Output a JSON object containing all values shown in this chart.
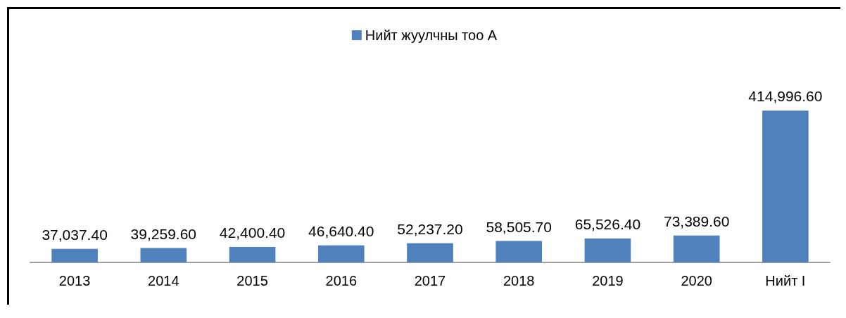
{
  "chart_data": {
    "type": "bar",
    "categories": [
      "2013",
      "2014",
      "2015",
      "2016",
      "2017",
      "2018",
      "2019",
      "2020",
      "Нийт І"
    ],
    "series": [
      {
        "name": "Нийт жуулчны тоо А",
        "color": "#4f81bd",
        "values": [
          37037.4,
          39259.6,
          42400.4,
          46640.4,
          52237.2,
          58505.7,
          65526.4,
          73389.6,
          414996.6
        ],
        "value_labels": [
          "37,037.40",
          "39,259.60",
          "42,400.40",
          "46,640.40",
          "52,237.20",
          "58,505.70",
          "65,526.40",
          "73,389.60",
          "414,996.60"
        ]
      }
    ],
    "legend": "top"
  }
}
